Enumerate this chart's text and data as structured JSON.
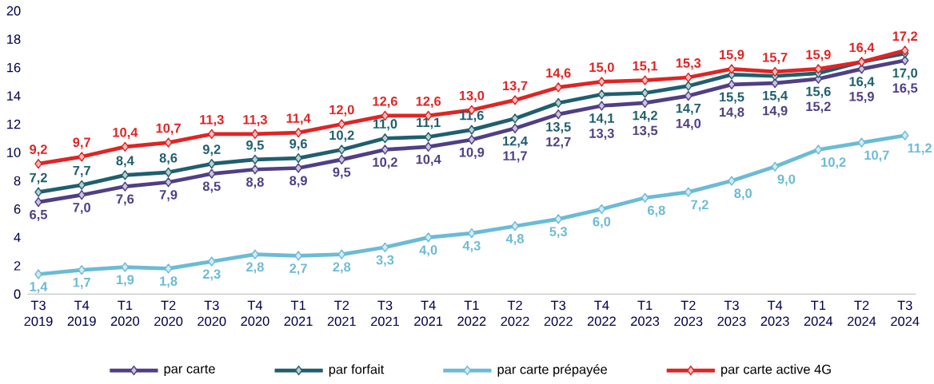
{
  "chart_data": {
    "type": "line",
    "categories": [
      "T3 2019",
      "T4 2019",
      "T1 2020",
      "T2 2020",
      "T3 2020",
      "T4 2020",
      "T1 2021",
      "T2 2021",
      "T3 2021",
      "T4 2021",
      "T1 2022",
      "T2 2022",
      "T3 2022",
      "T4 2022",
      "T1 2023",
      "T2 2023",
      "T3 2023",
      "T4 2023",
      "T1 2024",
      "T2 2024",
      "T3 2024"
    ],
    "ylim": [
      0,
      20
    ],
    "yticks": [
      0,
      2,
      4,
      6,
      8,
      10,
      12,
      14,
      16,
      18,
      20
    ],
    "grid": false,
    "legend": "bottom",
    "marker": "diamond",
    "line_style": "solid",
    "series": [
      {
        "name": "par carte",
        "color": "#4f3f86",
        "values": [
          6.5,
          7.0,
          7.6,
          7.9,
          8.5,
          8.8,
          8.9,
          9.5,
          10.2,
          10.4,
          10.9,
          11.7,
          12.7,
          13.3,
          13.5,
          14.0,
          14.8,
          14.9,
          15.2,
          15.9,
          16.5
        ],
        "value_labels": [
          "6,5",
          "7,0",
          "7,6",
          "7,9",
          "8,5",
          "8,8",
          "8,9",
          "9,5",
          "10,2",
          "10,4",
          "10,9",
          "11,7",
          "12,7",
          "13,3",
          "13,5",
          "14,0",
          "14,8",
          "14,9",
          "15,2",
          "15,9",
          "16,5"
        ]
      },
      {
        "name": "par forfait",
        "color": "#1f5f6e",
        "values": [
          7.2,
          7.7,
          8.4,
          8.6,
          9.2,
          9.5,
          9.6,
          10.2,
          11.0,
          11.1,
          11.6,
          12.4,
          13.5,
          14.1,
          14.2,
          14.7,
          15.5,
          15.4,
          15.6,
          16.4,
          17.0
        ],
        "value_labels": [
          "7,2",
          "7,7",
          "8,4",
          "8,6",
          "9,2",
          "9,5",
          "9,6",
          "10,2",
          "11,0",
          "11,1",
          "11,6",
          "12,4",
          "13,5",
          "14,1",
          "14,2",
          "14,7",
          "15,5",
          "15,4",
          "15,6",
          "16,4",
          "17,0"
        ]
      },
      {
        "name": "par carte prépayée",
        "color": "#6bbbd6",
        "values": [
          1.4,
          1.7,
          1.9,
          1.8,
          2.3,
          2.8,
          2.7,
          2.8,
          3.3,
          4.0,
          4.3,
          4.8,
          5.3,
          6.0,
          6.8,
          7.2,
          8.0,
          9.0,
          10.2,
          10.7,
          11.2
        ],
        "value_labels": [
          "1,4",
          "1,7",
          "1,9",
          "1,8",
          "2,3",
          "2,8",
          "2,7",
          "2,8",
          "3,3",
          "4,0",
          "4,3",
          "4,8",
          "5,3",
          "6,0",
          "6,8",
          "7,2",
          "8,0",
          "9,0",
          "10,2",
          "10,7",
          "11,2"
        ]
      },
      {
        "name": "par carte active 4G",
        "color": "#e02424",
        "values": [
          9.2,
          9.7,
          10.4,
          10.7,
          11.3,
          11.3,
          11.4,
          12.0,
          12.6,
          12.6,
          13.0,
          13.7,
          14.6,
          15.0,
          15.1,
          15.3,
          15.9,
          15.7,
          15.9,
          16.4,
          17.2
        ],
        "value_labels": [
          "9,2",
          "9,7",
          "10,4",
          "10,7",
          "11,3",
          "11,3",
          "11,4",
          "12,0",
          "12,6",
          "12,6",
          "13,0",
          "13,7",
          "14,6",
          "15,0",
          "15,1",
          "15,3",
          "15,9",
          "15,7",
          "15,9",
          "16,4",
          "17,2"
        ]
      }
    ]
  }
}
